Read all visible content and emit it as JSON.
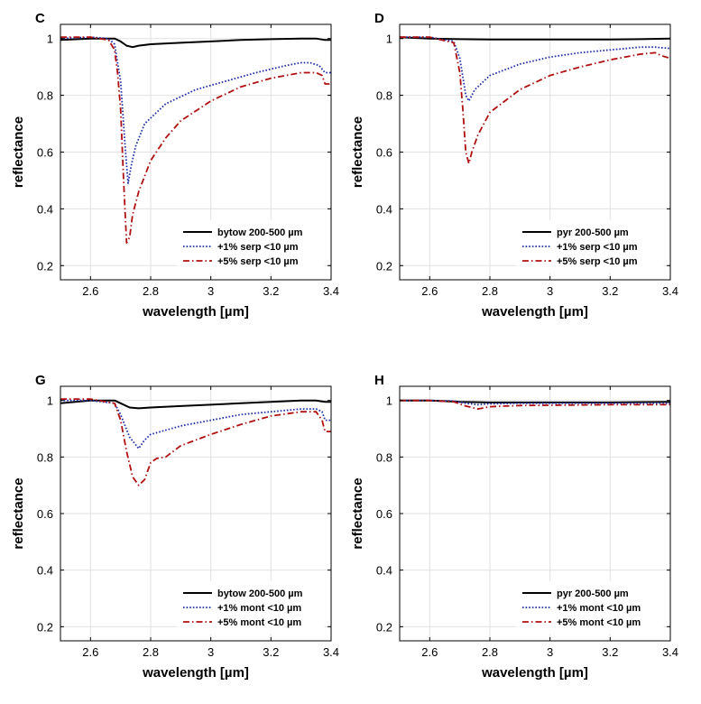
{
  "chart_data": [
    {
      "panel": "C",
      "type": "line",
      "xlabel": "wavelength [µm]",
      "ylabel": "reflectance",
      "xlim": [
        2.5,
        3.4
      ],
      "ylim": [
        0.15,
        1.05
      ],
      "xticks": [
        "2.6",
        "2.8",
        "3",
        "3.2",
        "3.4"
      ],
      "yticks": [
        "0.2",
        "0.4",
        "0.6",
        "0.8",
        "1"
      ],
      "grid": true,
      "legend_position": "bottom-right",
      "series": [
        {
          "name": "bytow 200-500 µm",
          "color": "#000000",
          "style": "solid",
          "x": [
            2.5,
            2.6,
            2.68,
            2.7,
            2.72,
            2.74,
            2.76,
            2.8,
            2.9,
            3.0,
            3.1,
            3.2,
            3.3,
            3.35,
            3.38,
            3.4
          ],
          "y": [
            0.995,
            1.0,
            1.0,
            0.99,
            0.975,
            0.97,
            0.975,
            0.98,
            0.985,
            0.99,
            0.995,
            0.998,
            1.0,
            1.0,
            0.995,
            0.995
          ]
        },
        {
          "name": "+1% serp <10 µm",
          "color": "#1f2fa8",
          "style": "dotted",
          "x": [
            2.5,
            2.6,
            2.66,
            2.68,
            2.7,
            2.715,
            2.725,
            2.735,
            2.75,
            2.78,
            2.85,
            2.95,
            3.05,
            3.15,
            3.25,
            3.3,
            3.33,
            3.36,
            3.38,
            3.4
          ],
          "y": [
            1.0,
            1.005,
            1.0,
            0.98,
            0.85,
            0.62,
            0.49,
            0.55,
            0.62,
            0.7,
            0.77,
            0.82,
            0.85,
            0.88,
            0.905,
            0.915,
            0.915,
            0.905,
            0.88,
            0.88
          ]
        },
        {
          "name": "+5% serp <10 µm",
          "color": "#b01010",
          "style": "dashdot",
          "x": [
            2.5,
            2.6,
            2.66,
            2.68,
            2.69,
            2.7,
            2.71,
            2.72,
            2.73,
            2.74,
            2.76,
            2.8,
            2.85,
            2.9,
            3.0,
            3.1,
            3.2,
            3.3,
            3.35,
            3.37,
            3.38,
            3.4
          ],
          "y": [
            1.005,
            1.005,
            0.995,
            0.96,
            0.88,
            0.75,
            0.5,
            0.28,
            0.3,
            0.38,
            0.46,
            0.57,
            0.65,
            0.71,
            0.78,
            0.83,
            0.86,
            0.88,
            0.88,
            0.87,
            0.84,
            0.84
          ]
        }
      ]
    },
    {
      "panel": "D",
      "type": "line",
      "xlabel": "wavelength [µm]",
      "ylabel": "reflectance",
      "xlim": [
        2.5,
        3.4
      ],
      "ylim": [
        0.15,
        1.05
      ],
      "xticks": [
        "2.6",
        "2.8",
        "3",
        "3.2",
        "3.4"
      ],
      "yticks": [
        "0.2",
        "0.4",
        "0.6",
        "0.8",
        "1"
      ],
      "grid": true,
      "legend_position": "bottom-right",
      "series": [
        {
          "name": "pyr 200-500 µm",
          "color": "#000000",
          "style": "solid",
          "x": [
            2.5,
            2.6,
            2.7,
            2.8,
            2.9,
            3.0,
            3.1,
            3.2,
            3.3,
            3.4
          ],
          "y": [
            1.005,
            1.0,
            0.998,
            0.997,
            0.997,
            0.997,
            0.997,
            0.997,
            0.998,
            1.0
          ]
        },
        {
          "name": "+1% serp <10 µm",
          "color": "#1f2fa8",
          "style": "dotted",
          "x": [
            2.5,
            2.6,
            2.68,
            2.7,
            2.72,
            2.73,
            2.75,
            2.8,
            2.9,
            3.0,
            3.1,
            3.2,
            3.3,
            3.35,
            3.4
          ],
          "y": [
            1.005,
            1.005,
            0.99,
            0.93,
            0.8,
            0.78,
            0.82,
            0.87,
            0.91,
            0.935,
            0.95,
            0.96,
            0.97,
            0.97,
            0.965
          ]
        },
        {
          "name": "+5% serp <10 µm",
          "color": "#b01010",
          "style": "dashdot",
          "x": [
            2.5,
            2.6,
            2.68,
            2.7,
            2.71,
            2.72,
            2.73,
            2.74,
            2.76,
            2.8,
            2.9,
            3.0,
            3.1,
            3.2,
            3.3,
            3.35,
            3.37,
            3.4
          ],
          "y": [
            1.005,
            1.005,
            0.985,
            0.88,
            0.75,
            0.6,
            0.56,
            0.6,
            0.66,
            0.74,
            0.82,
            0.87,
            0.9,
            0.925,
            0.945,
            0.95,
            0.94,
            0.93
          ]
        }
      ]
    },
    {
      "panel": "G",
      "type": "line",
      "xlabel": "wavelength [µm]",
      "ylabel": "reflectance",
      "xlim": [
        2.5,
        3.4
      ],
      "ylim": [
        0.15,
        1.05
      ],
      "xticks": [
        "2.6",
        "2.8",
        "3",
        "3.2",
        "3.4"
      ],
      "yticks": [
        "0.2",
        "0.4",
        "0.6",
        "0.8",
        "1"
      ],
      "grid": true,
      "legend_position": "bottom-right",
      "series": [
        {
          "name": "bytow 200-500 µm",
          "color": "#000000",
          "style": "solid",
          "x": [
            2.5,
            2.6,
            2.68,
            2.7,
            2.73,
            2.76,
            2.8,
            2.9,
            3.0,
            3.1,
            3.2,
            3.3,
            3.35,
            3.38,
            3.4
          ],
          "y": [
            0.99,
            1.0,
            1.0,
            0.99,
            0.975,
            0.972,
            0.975,
            0.98,
            0.985,
            0.99,
            0.995,
            1.0,
            1.0,
            0.995,
            0.995
          ]
        },
        {
          "name": "+1% mont <10 µm",
          "color": "#1f2fa8",
          "style": "dotted",
          "x": [
            2.5,
            2.6,
            2.68,
            2.7,
            2.73,
            2.76,
            2.78,
            2.8,
            2.85,
            2.9,
            3.0,
            3.1,
            3.2,
            3.3,
            3.35,
            3.37,
            3.38,
            3.4
          ],
          "y": [
            1.0,
            1.0,
            0.99,
            0.95,
            0.87,
            0.83,
            0.86,
            0.88,
            0.895,
            0.91,
            0.93,
            0.95,
            0.96,
            0.97,
            0.97,
            0.96,
            0.93,
            0.93
          ]
        },
        {
          "name": "+5% mont <10 µm",
          "color": "#b01010",
          "style": "dashdot",
          "x": [
            2.5,
            2.6,
            2.68,
            2.7,
            2.72,
            2.74,
            2.76,
            2.78,
            2.8,
            2.82,
            2.85,
            2.9,
            3.0,
            3.1,
            3.2,
            3.3,
            3.35,
            3.37,
            3.38,
            3.4
          ],
          "y": [
            1.005,
            1.005,
            0.99,
            0.93,
            0.82,
            0.73,
            0.7,
            0.72,
            0.78,
            0.795,
            0.8,
            0.84,
            0.88,
            0.915,
            0.945,
            0.96,
            0.96,
            0.93,
            0.89,
            0.89
          ]
        }
      ]
    },
    {
      "panel": "H",
      "type": "line",
      "xlabel": "wavelength [µm]",
      "ylabel": "reflectance",
      "xlim": [
        2.5,
        3.4
      ],
      "ylim": [
        0.15,
        1.05
      ],
      "xticks": [
        "2.6",
        "2.8",
        "3",
        "3.2",
        "3.4"
      ],
      "yticks": [
        "0.2",
        "0.4",
        "0.6",
        "0.8",
        "1"
      ],
      "grid": true,
      "legend_position": "bottom-right",
      "series": [
        {
          "name": "pyr 200-500 µm",
          "color": "#000000",
          "style": "solid",
          "x": [
            2.5,
            2.6,
            2.7,
            2.8,
            2.9,
            3.0,
            3.1,
            3.2,
            3.3,
            3.4
          ],
          "y": [
            1.0,
            1.0,
            0.995,
            0.993,
            0.993,
            0.993,
            0.993,
            0.993,
            0.994,
            0.995
          ]
        },
        {
          "name": "+1% mont <10 µm",
          "color": "#1f2fa8",
          "style": "dotted",
          "x": [
            2.5,
            2.6,
            2.68,
            2.72,
            2.76,
            2.8,
            2.9,
            3.0,
            3.1,
            3.2,
            3.3,
            3.4
          ],
          "y": [
            1.0,
            1.0,
            0.998,
            0.99,
            0.985,
            0.988,
            0.99,
            0.99,
            0.99,
            0.99,
            0.99,
            0.99
          ]
        },
        {
          "name": "+5% mont <10 µm",
          "color": "#b01010",
          "style": "dashdot",
          "x": [
            2.5,
            2.6,
            2.68,
            2.72,
            2.76,
            2.8,
            2.9,
            3.0,
            3.1,
            3.2,
            3.3,
            3.4
          ],
          "y": [
            1.0,
            1.0,
            0.995,
            0.98,
            0.97,
            0.978,
            0.982,
            0.983,
            0.984,
            0.985,
            0.985,
            0.985
          ]
        }
      ]
    }
  ]
}
